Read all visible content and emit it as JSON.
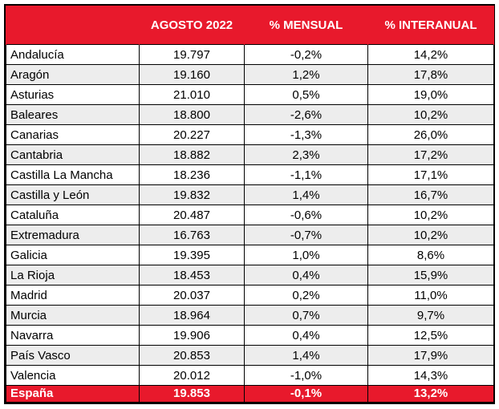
{
  "header": {
    "col1": "",
    "col2": "AGOSTO 2022",
    "col3": "% MENSUAL",
    "col4": "% INTERANUAL"
  },
  "rows": [
    {
      "region": "Andalucía",
      "value": "19.797",
      "monthly": "-0,2%",
      "yearly": "14,2%"
    },
    {
      "region": "Aragón",
      "value": "19.160",
      "monthly": "1,2%",
      "yearly": "17,8%"
    },
    {
      "region": "Asturias",
      "value": "21.010",
      "monthly": "0,5%",
      "yearly": "19,0%"
    },
    {
      "region": "Baleares",
      "value": "18.800",
      "monthly": "-2,6%",
      "yearly": "10,2%"
    },
    {
      "region": "Canarias",
      "value": "20.227",
      "monthly": "-1,3%",
      "yearly": "26,0%"
    },
    {
      "region": "Cantabria",
      "value": "18.882",
      "monthly": "2,3%",
      "yearly": "17,2%"
    },
    {
      "region": "Castilla La Mancha",
      "value": "18.236",
      "monthly": "-1,1%",
      "yearly": "17,1%"
    },
    {
      "region": "Castilla y León",
      "value": "19.832",
      "monthly": "1,4%",
      "yearly": "16,7%"
    },
    {
      "region": "Cataluña",
      "value": "20.487",
      "monthly": "-0,6%",
      "yearly": "10,2%"
    },
    {
      "region": "Extremadura",
      "value": "16.763",
      "monthly": "-0,7%",
      "yearly": "10,2%"
    },
    {
      "region": "Galicia",
      "value": "19.395",
      "monthly": "1,0%",
      "yearly": "8,6%"
    },
    {
      "region": "La Rioja",
      "value": "18.453",
      "monthly": "0,4%",
      "yearly": "15,9%"
    },
    {
      "region": "Madrid",
      "value": "20.037",
      "monthly": "0,2%",
      "yearly": "11,0%"
    },
    {
      "region": "Murcia",
      "value": "18.964",
      "monthly": "0,7%",
      "yearly": "9,7%"
    },
    {
      "region": "Navarra",
      "value": "19.906",
      "monthly": "0,4%",
      "yearly": "12,5%"
    },
    {
      "region": "País Vasco",
      "value": "20.853",
      "monthly": "1,4%",
      "yearly": "17,9%"
    },
    {
      "region": "Valencia",
      "value": "20.012",
      "monthly": "-1,0%",
      "yearly": "14,3%"
    }
  ],
  "total": {
    "region": "España",
    "value": "19.853",
    "monthly": "-0,1%",
    "yearly": "13,2%"
  },
  "colors": {
    "header_bg": "#e8192c",
    "header_text": "#ffffff",
    "stripe": "#ededed"
  }
}
